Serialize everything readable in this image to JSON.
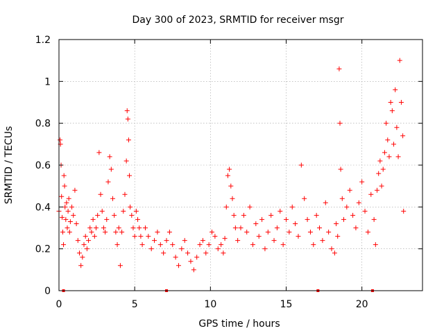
{
  "chart_data": {
    "type": "scatter",
    "title": "Day 300 of 2023, SRMTID for receiver msgr",
    "xlabel": "GPS time / hours",
    "ylabel": "SRMTID / TECUs",
    "xlim": [
      0,
      24
    ],
    "ylim": [
      0,
      1.2
    ],
    "xticks": [
      "0",
      "5",
      "10",
      "15",
      "20"
    ],
    "xtick_values": [
      0,
      5,
      10,
      15,
      20
    ],
    "yticks": [
      "0",
      "0.2",
      "0.4",
      "0.6",
      "0.8",
      "1",
      "1.2"
    ],
    "ytick_values": [
      0,
      0.2,
      0.4,
      0.6,
      0.8,
      1.0,
      1.2
    ],
    "grid": true,
    "marker": "plus",
    "point_color": "#ff0000",
    "zero_markers_x": [
      0.3,
      7.1,
      17.1,
      20.7
    ],
    "series": [
      {
        "name": "SRMTID",
        "x": [
          0.0,
          0.07,
          0.1,
          0.14,
          0.17,
          0.21,
          0.25,
          0.3,
          0.33,
          0.37,
          0.4,
          0.45,
          0.5,
          0.55,
          0.6,
          0.65,
          0.7,
          0.75,
          0.85,
          0.95,
          1.05,
          1.15,
          1.25,
          1.35,
          1.45,
          1.55,
          1.65,
          1.75,
          1.85,
          1.95,
          2.05,
          2.15,
          2.25,
          2.35,
          2.45,
          2.55,
          2.65,
          2.75,
          2.85,
          2.95,
          3.05,
          3.15,
          3.25,
          3.35,
          3.45,
          3.55,
          3.65,
          3.75,
          3.85,
          3.95,
          4.05,
          4.15,
          4.25,
          4.35,
          4.45,
          4.5,
          4.55,
          4.6,
          4.65,
          4.7,
          4.8,
          4.9,
          5.0,
          5.1,
          5.2,
          5.3,
          5.4,
          5.5,
          5.7,
          5.9,
          6.1,
          6.3,
          6.5,
          6.7,
          6.9,
          7.1,
          7.3,
          7.5,
          7.7,
          7.9,
          8.1,
          8.3,
          8.5,
          8.7,
          8.9,
          9.1,
          9.3,
          9.5,
          9.7,
          9.9,
          10.1,
          10.3,
          10.5,
          10.7,
          10.85,
          10.95,
          11.05,
          11.15,
          11.25,
          11.35,
          11.45,
          11.55,
          11.65,
          11.8,
          12.0,
          12.2,
          12.4,
          12.6,
          12.8,
          13.0,
          13.2,
          13.4,
          13.6,
          13.8,
          14.0,
          14.2,
          14.4,
          14.6,
          14.8,
          15.0,
          15.2,
          15.4,
          15.6,
          15.8,
          16.0,
          16.2,
          16.4,
          16.6,
          16.8,
          17.0,
          17.2,
          17.4,
          17.6,
          17.8,
          18.0,
          18.2,
          18.3,
          18.4,
          18.5,
          18.55,
          18.6,
          18.7,
          18.8,
          19.0,
          19.2,
          19.4,
          19.6,
          19.8,
          20.0,
          20.2,
          20.4,
          20.6,
          20.8,
          20.9,
          21.0,
          21.1,
          21.2,
          21.3,
          21.4,
          21.5,
          21.6,
          21.7,
          21.8,
          21.9,
          22.0,
          22.1,
          22.2,
          22.3,
          22.4,
          22.5,
          22.6,
          22.7,
          22.75
        ],
        "y": [
          0.38,
          0.72,
          0.7,
          0.6,
          0.45,
          0.35,
          0.28,
          0.22,
          0.55,
          0.5,
          0.4,
          0.34,
          0.42,
          0.3,
          0.38,
          0.44,
          0.28,
          0.33,
          0.4,
          0.36,
          0.48,
          0.32,
          0.24,
          0.18,
          0.12,
          0.16,
          0.22,
          0.26,
          0.2,
          0.24,
          0.3,
          0.28,
          0.34,
          0.26,
          0.3,
          0.36,
          0.66,
          0.46,
          0.38,
          0.3,
          0.28,
          0.34,
          0.52,
          0.64,
          0.58,
          0.44,
          0.36,
          0.28,
          0.22,
          0.3,
          0.12,
          0.28,
          0.38,
          0.46,
          0.62,
          0.86,
          0.82,
          0.72,
          0.55,
          0.4,
          0.36,
          0.3,
          0.26,
          0.38,
          0.34,
          0.3,
          0.26,
          0.22,
          0.3,
          0.26,
          0.2,
          0.24,
          0.28,
          0.22,
          0.18,
          0.24,
          0.28,
          0.22,
          0.16,
          0.12,
          0.2,
          0.24,
          0.18,
          0.14,
          0.1,
          0.16,
          0.22,
          0.24,
          0.18,
          0.22,
          0.28,
          0.26,
          0.2,
          0.22,
          0.18,
          0.25,
          0.4,
          0.55,
          0.58,
          0.5,
          0.44,
          0.36,
          0.3,
          0.24,
          0.3,
          0.36,
          0.28,
          0.4,
          0.22,
          0.32,
          0.26,
          0.34,
          0.2,
          0.28,
          0.36,
          0.24,
          0.3,
          0.38,
          0.22,
          0.34,
          0.28,
          0.4,
          0.32,
          0.26,
          0.6,
          0.44,
          0.34,
          0.28,
          0.22,
          0.36,
          0.3,
          0.24,
          0.42,
          0.28,
          0.2,
          0.18,
          0.32,
          0.26,
          1.06,
          0.8,
          0.58,
          0.44,
          0.34,
          0.4,
          0.48,
          0.36,
          0.3,
          0.42,
          0.52,
          0.38,
          0.28,
          0.46,
          0.34,
          0.22,
          0.48,
          0.56,
          0.62,
          0.5,
          0.58,
          0.66,
          0.8,
          0.72,
          0.64,
          0.9,
          0.86,
          0.7,
          0.96,
          0.78,
          0.64,
          1.1,
          0.9,
          0.74,
          0.38
        ]
      }
    ]
  }
}
